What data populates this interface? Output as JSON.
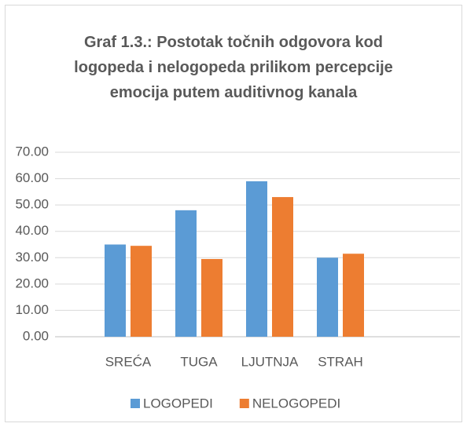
{
  "chart_data": {
    "type": "bar",
    "title": "Graf 1.3.: Postotak točnih odgovora kod logopeda i nelogopeda prilikom percepcije emocija putem auditivnog kanala",
    "categories": [
      "SREĆA",
      "TUGA",
      "LJUTNJA",
      "STRAH"
    ],
    "series": [
      {
        "name": "LOGOPEDI",
        "color": "#5b9bd5",
        "values": [
          35,
          48,
          59,
          30
        ]
      },
      {
        "name": "NELOGOPEDI",
        "color": "#ed7d31",
        "values": [
          34.5,
          29.5,
          53,
          31.5
        ]
      }
    ],
    "ylim": [
      0,
      70
    ],
    "yticks": [
      {
        "value": 0,
        "label": "0.00"
      },
      {
        "value": 10,
        "label": "10.00"
      },
      {
        "value": 20,
        "label": "20.00"
      },
      {
        "value": 30,
        "label": "30.00"
      },
      {
        "value": 40,
        "label": "40.00"
      },
      {
        "value": 50,
        "label": "50.00"
      },
      {
        "value": 60,
        "label": "60.00"
      },
      {
        "value": 70,
        "label": "70.00"
      }
    ],
    "grid": true,
    "legend": "bottom"
  }
}
